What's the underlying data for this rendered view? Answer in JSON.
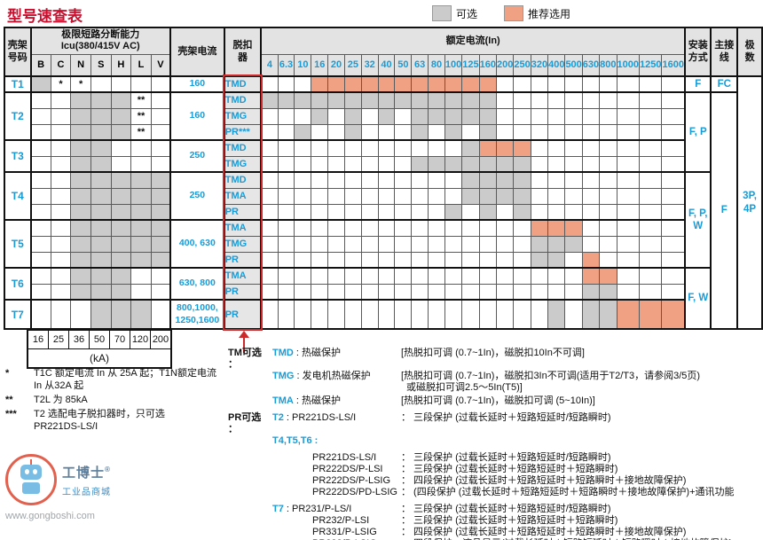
{
  "title": "型号速查表",
  "legend": {
    "optional": "可选",
    "recommended": "推荐选用"
  },
  "colors": {
    "gray_cell": "#cbcbcb",
    "orange_cell": "#f0a183",
    "blue": "#189cd8",
    "title_red": "#c8102e",
    "box_red": "#cc2a2a"
  },
  "table": {
    "header": {
      "frame": "壳架\n号码",
      "icu_line1": "极限短路分断能力",
      "icu_line2": "Icu(380/415V AC)",
      "icu_cols": [
        "B",
        "C",
        "N",
        "S",
        "H",
        "L",
        "V"
      ],
      "frame_current": "壳架电流",
      "trip": "脱扣\n器",
      "rated": "额定电流(In)",
      "in_cols": [
        "4",
        "6.3",
        "10",
        "16",
        "20",
        "25",
        "32",
        "40",
        "50",
        "63",
        "80",
        "100",
        "125",
        "160",
        "200",
        "250",
        "320",
        "400",
        "500",
        "630",
        "800",
        "1000",
        "1250",
        "1600"
      ],
      "mount": "安装\n方式",
      "wiring": "主接\n线",
      "poles": "极\n数"
    },
    "frames": [
      {
        "id": "T1",
        "current": "160",
        "icu": [
          "g",
          "*",
          "*",
          "",
          "",
          "",
          ""
        ],
        "rows": [
          {
            "trip": "TMD",
            "orange": [
              "16",
              "20",
              "25",
              "32",
              "40",
              "50",
              "63",
              "80",
              "100",
              "125",
              "160"
            ]
          }
        ],
        "mount": {
          "text": "F",
          "span": 1
        },
        "wiring": {
          "text": "FC",
          "span": 1
        },
        "poles": {
          "text": "3P,\n4P",
          "span": 15
        }
      },
      {
        "id": "T2",
        "current": "160",
        "icu": [
          "",
          "",
          "g",
          "g",
          "g",
          "**",
          ""
        ],
        "rows": [
          {
            "trip": "TMD",
            "gray": [
              "4",
              "6.3",
              "10",
              "16",
              "20",
              "25",
              "32",
              "40",
              "50",
              "63",
              "80",
              "100",
              "125",
              "160"
            ]
          },
          {
            "trip": "TMG",
            "gray": [
              "16",
              "25",
              "40",
              "63",
              "80",
              "100",
              "125",
              "160"
            ]
          },
          {
            "trip": "PR***",
            "gray": [
              "10",
              "25",
              "63",
              "100",
              "160"
            ]
          }
        ],
        "mount": {
          "text": "F, P",
          "span": 5
        },
        "wiring": {
          "text": "F",
          "span": 14
        }
      },
      {
        "id": "T3",
        "current": "250",
        "icu": [
          "",
          "",
          "g",
          "g",
          "",
          "",
          ""
        ],
        "rows": [
          {
            "trip": "TMD",
            "gray": [
              "125"
            ],
            "orange": [
              "160",
              "200",
              "250"
            ]
          },
          {
            "trip": "TMG",
            "gray": [
              "63",
              "80",
              "100",
              "125",
              "160",
              "200",
              "250"
            ]
          }
        ]
      },
      {
        "id": "T4",
        "current": "250",
        "icu": [
          "",
          "",
          "g",
          "g",
          "g",
          "g",
          "g"
        ],
        "rows": [
          {
            "trip": "TMD",
            "gray": [
              "125",
              "160",
              "200",
              "250"
            ]
          },
          {
            "trip": "TMA",
            "gray": [
              "125",
              "160",
              "200",
              "250"
            ]
          },
          {
            "trip": "PR",
            "gray": [
              "100",
              "160",
              "250"
            ]
          }
        ],
        "mount": {
          "text": "F, P,\nW",
          "span": 6
        }
      },
      {
        "id": "T5",
        "current": "400, 630",
        "icu": [
          "",
          "",
          "g",
          "g",
          "g",
          "g",
          "g"
        ],
        "rows": [
          {
            "trip": "TMA",
            "orange": [
              "320",
              "400",
              "500"
            ]
          },
          {
            "trip": "TMG",
            "gray": [
              "320",
              "400",
              "500"
            ]
          },
          {
            "trip": "PR",
            "gray": [
              "320",
              "400"
            ],
            "orange": [
              "630"
            ]
          }
        ]
      },
      {
        "id": "T6",
        "current": "630, 800",
        "icu": [
          "",
          "",
          "g",
          "g",
          "g",
          "",
          ""
        ],
        "rows": [
          {
            "trip": "TMA",
            "orange": [
              "630",
              "800"
            ]
          },
          {
            "trip": "PR",
            "gray": [
              "630",
              "800"
            ]
          }
        ],
        "mount": {
          "text": "F, W",
          "span": 3
        }
      },
      {
        "id": "T7",
        "current": "800,1000,\n1250,1600",
        "icu": [
          "",
          "",
          "",
          "g",
          "g",
          "g",
          ""
        ],
        "tall": true,
        "rows": [
          {
            "trip": "PR",
            "gray": [
              "400",
              "630",
              "800"
            ],
            "orange": [
              "1000",
              "1250",
              "1600"
            ]
          }
        ]
      }
    ]
  },
  "ka_scale": {
    "values": [
      "16",
      "25",
      "36",
      "50",
      "70",
      "120",
      "200"
    ],
    "unit": "(kA)"
  },
  "footnotes": [
    {
      "marker": "*",
      "text": "T1C 额定电流 In 从 25A 起；T1N额定电流\nIn 从32A 起"
    },
    {
      "marker": "**",
      "text": "T2L 为 85kA"
    },
    {
      "marker": "***",
      "text": "T2 选配电子脱扣器时，只可选\nPR221DS-LS/I"
    }
  ],
  "annotations": [
    {
      "label": "TM可选 ：",
      "blue": "TMD",
      "rest": " : 热磁保护",
      "desc": "[热脱扣可调 (0.7~1In)，磁脱扣10In不可调]"
    },
    {
      "label": "",
      "blue": "TMG",
      "rest": " : 发电机热磁保护",
      "desc": "[热脱扣可调 (0.7~1In)，磁脱扣3In不可调(适用于T2/T3，请参阅3/5页)"
    },
    {
      "label": "",
      "blue": "",
      "rest": "",
      "desc": "或磁脱扣可调2.5～5In(T5)]",
      "desc_ind": true
    },
    {
      "label": "",
      "blue": "TMA",
      "rest": " : 热磁保护",
      "desc": "[热脱扣可调 (0.7~1In)，磁脱扣可调 (5~10In)]",
      "gap": "sm"
    },
    {
      "label": "PR可选 ：",
      "blue": "T2",
      "rest": " : PR221DS-LS/I",
      "desc": "： 三段保护 (过载长延时＋短路短延时/短路瞬时)",
      "gap": "lg"
    },
    {
      "label": "",
      "blue": "T4,T5,T6 :",
      "rest": "",
      "desc": ""
    },
    {
      "label": "",
      "blue": "",
      "rest": "PR221DS-LS/I",
      "ind": true,
      "desc": "： 三段保护 (过载长延时＋短路短延时/短路瞬时)",
      "gap": "lg"
    },
    {
      "label": "",
      "blue": "",
      "rest": "PR222DS/P-LSI",
      "ind": true,
      "desc": "： 三段保护 (过载长延时＋短路短延时＋短路瞬时)"
    },
    {
      "label": "",
      "blue": "",
      "rest": "PR222DS/P-LSIG",
      "ind": true,
      "desc": "： 四段保护 (过载长延时＋短路短延时＋短路瞬时＋接地故障保护)"
    },
    {
      "label": "",
      "blue": "",
      "rest": "PR222DS/PD-LSIG",
      "ind": true,
      "desc": "： (四段保护 (过载长延时＋短路短延时＋短路瞬时＋接地故障保护)+通讯功能"
    },
    {
      "label": "",
      "blue": "T7",
      "rest": " : PR231/P-LS/I",
      "desc": "： 三段保护 (过载长延时＋短路短延时/短路瞬时)",
      "gap": "lg"
    },
    {
      "label": "",
      "blue": "",
      "rest": "PR232/P-LSI",
      "ind": true,
      "desc": "： 三段保护 (过载长延时＋短路短延时＋短路瞬时)"
    },
    {
      "label": "",
      "blue": "",
      "rest": "PR331/P-LSIG",
      "ind": true,
      "desc": "： 四段保护 (过载长延时＋短路短延时＋短路瞬时＋接地故障保护)"
    },
    {
      "label": "",
      "blue": "",
      "rest": "PR332/P-LSIG",
      "ind": true,
      "desc": "： 四段保护，液晶显示(过载长延时＋短路短延时＋短路瞬时＋接地故障保护)"
    }
  ],
  "watermark": {
    "name": "工博士",
    "reg": "®",
    "sub": "工业品商城",
    "url": "www.gongboshi.com"
  }
}
